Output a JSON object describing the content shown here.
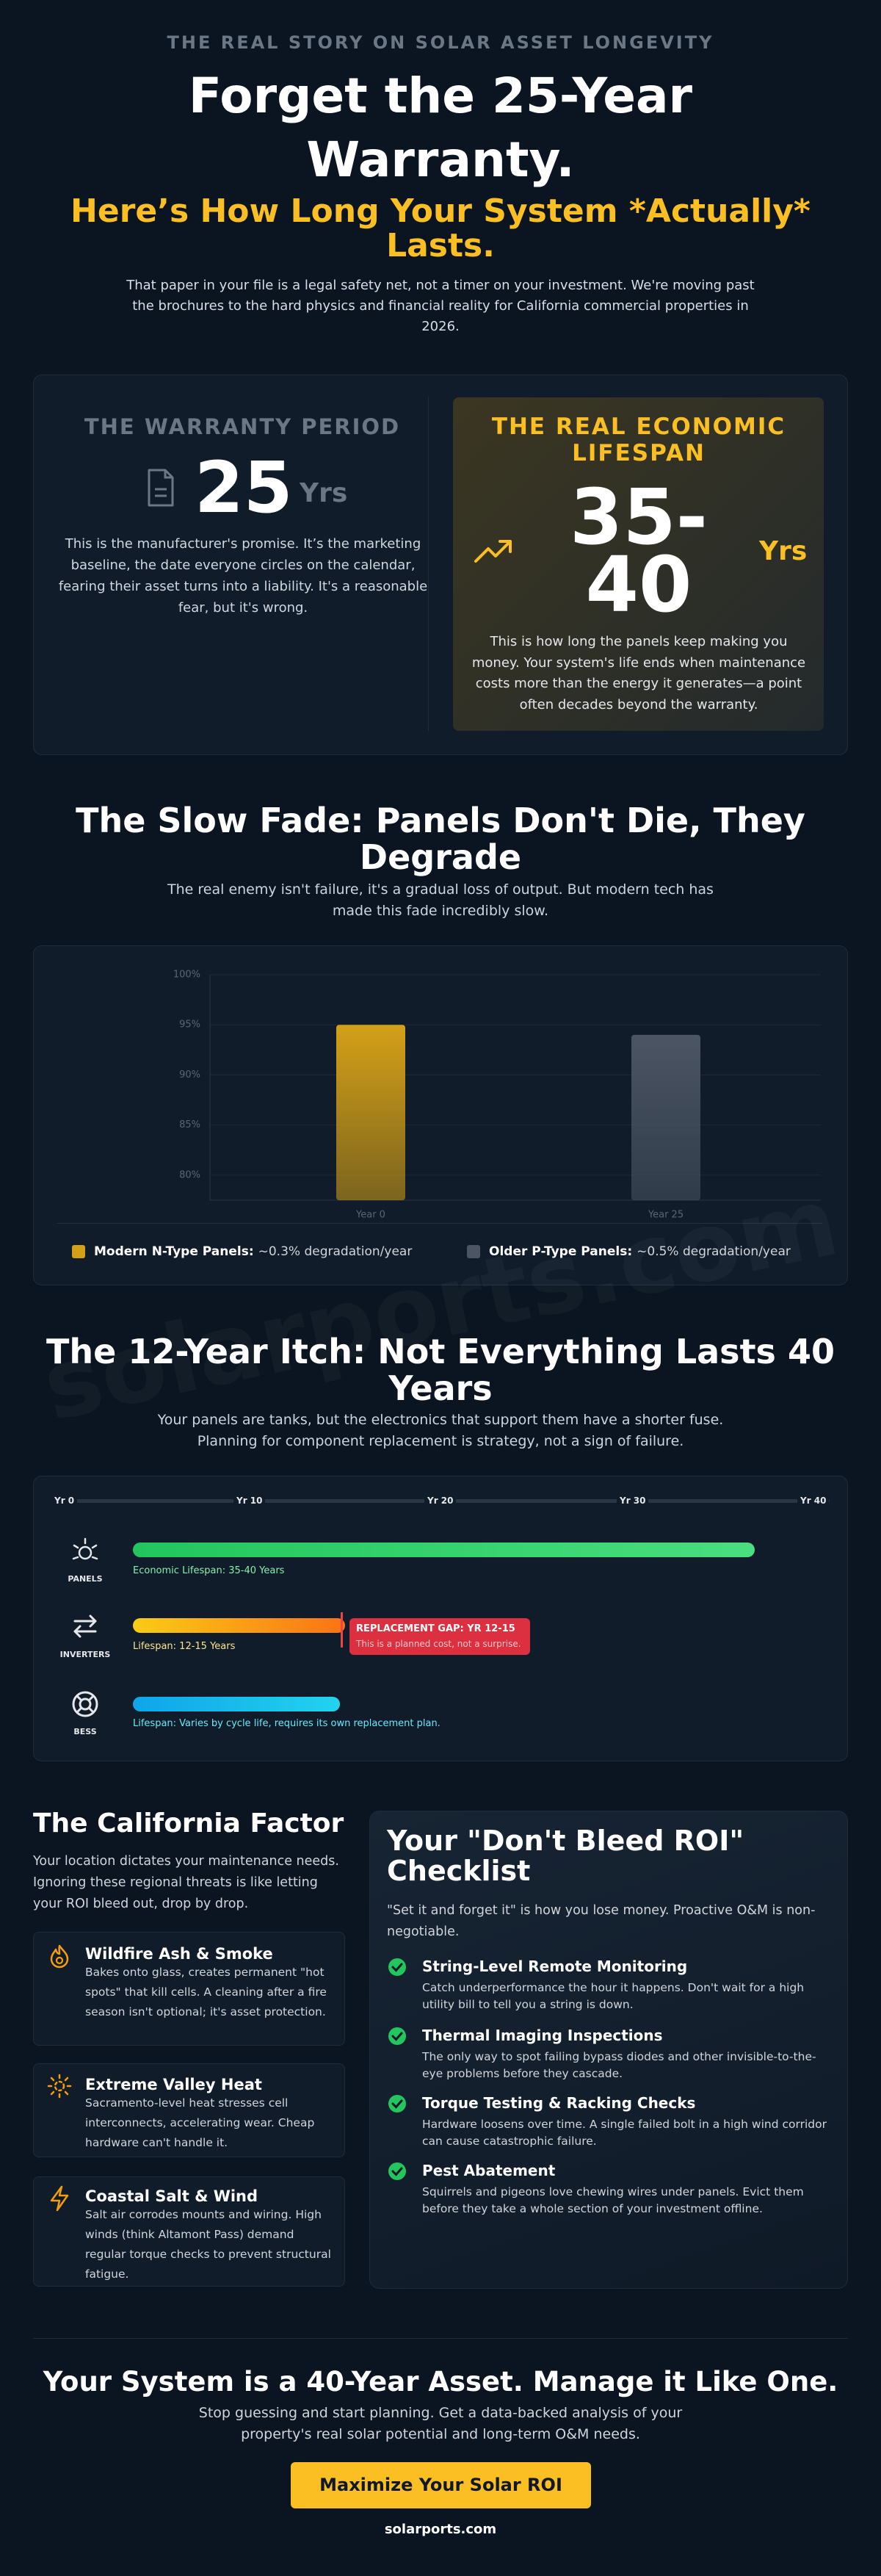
{
  "header": {
    "eyebrow": "THE REAL STORY ON SOLAR ASSET LONGEVITY",
    "title": "Forget the 25-Year Warranty.",
    "subtitle": "Here’s How Long Your System *Actually* Lasts.",
    "intro": "That paper in your file is a legal safety net, not a timer on your investment. We're moving past the brochures to the hard physics and financial reality for California commercial properties in 2026."
  },
  "comparison": {
    "warranty": {
      "label": "THE WARRANTY PERIOD",
      "number": "25",
      "unit": "Yrs",
      "text": "This is the manufacturer's promise. It’s the marketing baseline, the date everyone circles on the calendar, fearing their asset turns into a liability. It's a reasonable fear, but it's wrong."
    },
    "lifespan": {
      "label": "THE REAL ECONOMIC LIFESPAN",
      "number": "35-40",
      "unit": "Yrs",
      "text": "This is how long the panels keep making you money. Your system's life ends when maintenance costs more than the energy it generates—a point often decades beyond the warranty."
    }
  },
  "degradation": {
    "title": "The Slow Fade: Panels Don't Die, They Degrade",
    "subtitle": "The real enemy isn't failure, it's a gradual loss of output. But modern tech has made this fade incredibly slow."
  },
  "chart_data": {
    "type": "bar",
    "categories": [
      "Year 0",
      "Year 25"
    ],
    "series": [
      {
        "name": "Modern N-Type Panels:",
        "description": "~0.3% degradation/year",
        "color": "#d4a017",
        "values": [
          95,
          null
        ]
      },
      {
        "name": "Older P-Type Panels:",
        "description": "~0.5% degradation/year",
        "color": "#4b5563",
        "values": [
          null,
          94
        ]
      }
    ],
    "ylim": [
      77.5,
      100
    ],
    "yticks": [
      {
        "value": 80,
        "label": "80%"
      },
      {
        "value": 85,
        "label": "85%"
      },
      {
        "value": 90,
        "label": "90%"
      },
      {
        "value": 95,
        "label": "95%"
      },
      {
        "value": 100,
        "label": "100%"
      }
    ],
    "grid": true
  },
  "watermark": "solarports.com",
  "itch": {
    "title": "The 12-Year Itch: Not Everything Lasts 40 Years",
    "subtitle": "Your panels are tanks, but the electronics that support them have a shorter fuse. Planning for component replacement is strategy, not a sign of failure.",
    "scale": [
      "Yr 0",
      "Yr 10",
      "Yr 20",
      "Yr 30",
      "Yr 40"
    ],
    "rows": [
      {
        "label": "PANELS",
        "note": "Economic Lifespan: 35-40 Years"
      },
      {
        "label": "INVERTERS",
        "note": "Lifespan: 12-15 Years",
        "gap_title": "REPLACEMENT GAP: YR 12-15",
        "gap_note": "This is a planned cost, not a surprise."
      },
      {
        "label": "BESS",
        "note": "Lifespan: Varies by cycle life, requires its own replacement plan."
      }
    ]
  },
  "california": {
    "title": "The California Factor",
    "text": "Your location dictates your maintenance needs. Ignoring these regional threats is like letting your ROI bleed out, drop by drop.",
    "threats": [
      {
        "title": "Wildfire Ash & Smoke",
        "text": "Bakes onto glass, creates permanent \"hot spots\" that kill cells. A cleaning after a fire season isn't optional; it's asset protection."
      },
      {
        "title": "Extreme Valley Heat",
        "text": "Sacramento-level heat stresses cell interconnects, accelerating wear. Cheap hardware can't handle it."
      },
      {
        "title": "Coastal Salt & Wind",
        "text": "Salt air corrodes mounts and wiring. High winds (think Altamont Pass) demand regular torque checks to prevent structural fatigue."
      }
    ]
  },
  "checklist": {
    "title": "Your \"Don't Bleed ROI\" Checklist",
    "intro": "\"Set it and forget it\" is how you lose money. Proactive O&M is non-negotiable.",
    "items": [
      {
        "title": "String-Level Remote Monitoring",
        "text": "Catch underperformance the hour it happens. Don't wait for a high utility bill to tell you a string is down."
      },
      {
        "title": "Thermal Imaging Inspections",
        "text": "The only way to spot failing bypass diodes and other invisible-to-the-eye problems before they cascade."
      },
      {
        "title": "Torque Testing & Racking Checks",
        "text": "Hardware loosens over time. A single failed bolt in a high wind corridor can cause catastrophic failure."
      },
      {
        "title": "Pest Abatement",
        "text": "Squirrels and pigeons love chewing wires under panels. Evict them before they take a whole section of your investment offline."
      }
    ]
  },
  "footer": {
    "title": "Your System is a 40-Year Asset. Manage it Like One.",
    "text": "Stop guessing and start planning. Get a data-backed analysis of your property's real solar potential and long-term O&M needs.",
    "button": "Maximize Your Solar ROI",
    "site": "solarports.com"
  }
}
